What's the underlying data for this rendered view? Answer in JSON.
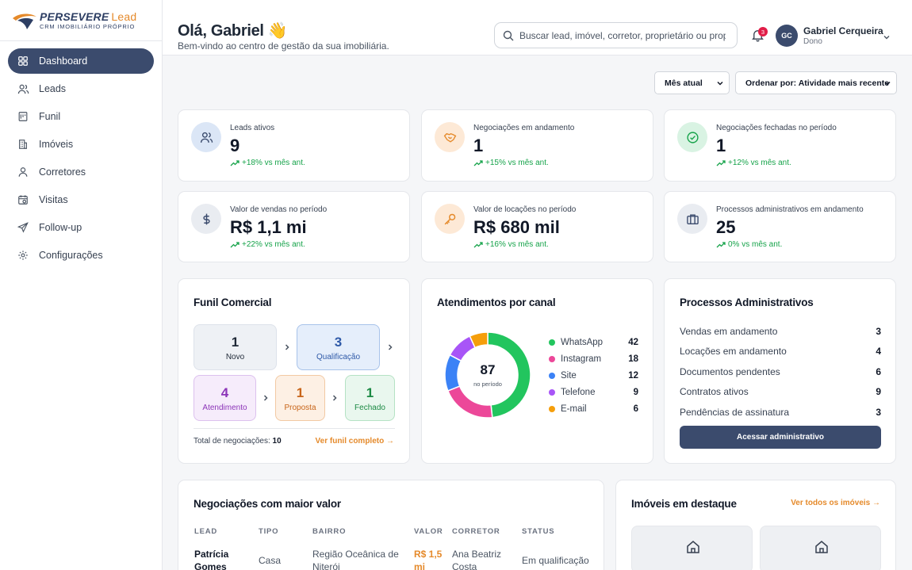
{
  "brand": {
    "name": "PERSEVERE",
    "suffix": "Lead",
    "tagline": "CRM IMOBILIÁRIO PRÓPRIO"
  },
  "sidebar": {
    "items": [
      {
        "label": "Dashboard",
        "icon": "dashboard-icon",
        "active": true
      },
      {
        "label": "Leads",
        "icon": "users-icon"
      },
      {
        "label": "Funil",
        "icon": "funnel-icon"
      },
      {
        "label": "Imóveis",
        "icon": "building-icon"
      },
      {
        "label": "Corretores",
        "icon": "user-icon"
      },
      {
        "label": "Visitas",
        "icon": "calendar-icon"
      },
      {
        "label": "Follow-up",
        "icon": "send-icon"
      },
      {
        "label": "Configurações",
        "icon": "gear-icon"
      }
    ]
  },
  "header": {
    "greeting": "Olá, Gabriel 👋",
    "subtitle": "Bem-vindo ao centro de gestão da sua imobiliária.",
    "search_placeholder": "Buscar lead, imóvel, corretor, proprietário ou prop",
    "notifications": "3",
    "user": {
      "initials": "GC",
      "name": "Gabriel Cerqueira",
      "role": "Dono"
    }
  },
  "filters": {
    "period": "Mês atual",
    "order": "Ordenar por: Atividade mais recente"
  },
  "kpis": [
    {
      "label": "Leads ativos",
      "value": "9",
      "trend": "+18% vs mês ant.",
      "icon": "users-icon"
    },
    {
      "label": "Negociações em andamento",
      "value": "1",
      "trend": "+15% vs mês ant.",
      "icon": "handshake-icon"
    },
    {
      "label": "Negociações fechadas no período",
      "value": "1",
      "trend": "+12% vs mês ant.",
      "icon": "check-circle-icon"
    },
    {
      "label": "Valor de vendas no período",
      "value": "R$ 1,1 mi",
      "trend": "+22% vs mês ant.",
      "icon": "dollar-icon"
    },
    {
      "label": "Valor de locações no período",
      "value": "R$ 680 mil",
      "trend": "+16% vs mês ant.",
      "icon": "key-icon"
    },
    {
      "label": "Processos administrativos em andamento",
      "value": "25",
      "trend": "0% vs mês ant.",
      "icon": "briefcase-icon"
    }
  ],
  "funnel": {
    "title": "Funil Comercial",
    "stages": [
      {
        "value": "1",
        "label": "Novo"
      },
      {
        "value": "3",
        "label": "Qualificação"
      },
      {
        "value": "4",
        "label": "Atendimento"
      },
      {
        "value": "1",
        "label": "Proposta"
      },
      {
        "value": "1",
        "label": "Fechado"
      }
    ],
    "total_label": "Total de negociações:",
    "total_value": "10",
    "link": "Ver funil completo →"
  },
  "channels": {
    "title": "Atendimentos por canal",
    "total": "87",
    "total_label": "no período",
    "colors": {
      "WhatsApp": "#22c55e",
      "Instagram": "#ec4899",
      "Site": "#3b82f6",
      "Telefone": "#a855f7",
      "E-mail": "#f59e0b"
    }
  },
  "chart_data": {
    "type": "pie",
    "title": "Atendimentos por canal",
    "categories": [
      "WhatsApp",
      "Instagram",
      "Site",
      "Telefone",
      "E-mail"
    ],
    "values": [
      42,
      18,
      12,
      9,
      6
    ]
  },
  "processos": {
    "title": "Processos Administrativos",
    "rows": [
      {
        "label": "Vendas em andamento",
        "value": "3"
      },
      {
        "label": "Locações em andamento",
        "value": "4"
      },
      {
        "label": "Documentos pendentes",
        "value": "6"
      },
      {
        "label": "Contratos ativos",
        "value": "9"
      },
      {
        "label": "Pendências de assinatura",
        "value": "3"
      }
    ],
    "button": "Acessar administrativo"
  },
  "negociacoes": {
    "title": "Negociações com maior valor",
    "columns": [
      "LEAD",
      "TIPO",
      "BAIRRO",
      "VALOR",
      "CORRETOR",
      "STATUS"
    ],
    "rows": [
      {
        "lead": "Patrícia Gomes",
        "tipo": "Casa",
        "bairro": "Região Oceânica de Niterói",
        "valor": "R$ 1,5 mi",
        "corretor": "Ana Beatriz Costa",
        "status": "Em qualificação"
      }
    ]
  },
  "imoveis": {
    "title": "Imóveis em destaque",
    "link": "Ver todos os imóveis →"
  }
}
